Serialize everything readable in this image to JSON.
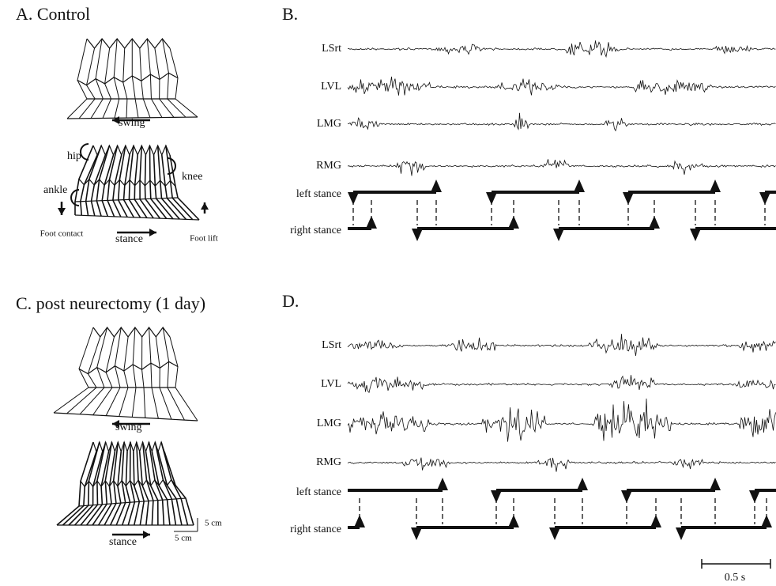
{
  "panel_a": {
    "title": "A. Control",
    "swing": "swing",
    "hip": "hip",
    "knee": "knee",
    "ankle": "ankle",
    "foot_contact": "Foot contact",
    "stance": "stance",
    "foot_lift": "Foot lift"
  },
  "panel_b": {
    "title": "B.",
    "rows": [
      "LSrt",
      "LVL",
      "LMG",
      "RMG",
      "left stance",
      "right stance"
    ]
  },
  "panel_c": {
    "title": "C. post neurectomy (1 day)",
    "swing": "swing",
    "stance": "stance",
    "scale_v": "5 cm",
    "scale_h": "5 cm"
  },
  "panel_d": {
    "title": "D.",
    "rows": [
      "LSrt",
      "LVL",
      "LMG",
      "RMG",
      "left stance",
      "right stance"
    ],
    "time_scale": "0.5 s"
  }
}
